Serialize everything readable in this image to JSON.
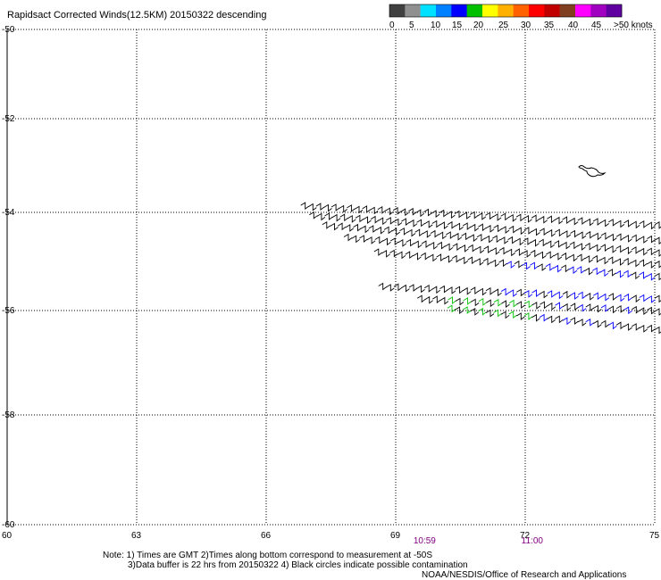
{
  "title": "Rapidsact Corrected Winds(12.5KM) 20150322 descending",
  "legend": {
    "colors": [
      "#404040",
      "#909090",
      "#00e0ff",
      "#0080ff",
      "#0000ff",
      "#00c000",
      "#ffff00",
      "#ffb000",
      "#ff6000",
      "#ff0000",
      "#c00000",
      "#804020",
      "#ff00ff",
      "#a000c0",
      "#6000a0"
    ],
    "labels": [
      "0",
      "5",
      "10",
      "15",
      "20",
      "25",
      "30",
      "35",
      "40",
      "45",
      ">50 knots"
    ]
  },
  "axes": {
    "lon_ticks": [
      60,
      63,
      66,
      69,
      72,
      75
    ],
    "lat_ticks": [
      -50,
      -52,
      -54,
      -56,
      -58,
      -60
    ],
    "lon_range": [
      60,
      75
    ],
    "lat_range": [
      -60,
      -50
    ]
  },
  "times": [
    {
      "label": "10:59",
      "lon": 69.7
    },
    {
      "label": "11:00",
      "lon": 72.2
    }
  ],
  "notes": [
    "Note: 1) Times are GMT 2)Times along bottom correspond to measurement at -50S",
    "3)Data buffer is 22 hrs from 20150322 4) Black circles indicate possible contamination",
    "NOAA/NESDIS/Office of Research and Applications"
  ],
  "chart_data": {
    "type": "scatter",
    "description_units": "lon (deg E), lat (deg)",
    "swath": {
      "rows": [
        {
          "lon_start": 66.8,
          "lat_start": -53.85,
          "lon_end": 75.0,
          "lat_end": -54.25,
          "color": "black"
        },
        {
          "lon_start": 67.0,
          "lat_start": -54.05,
          "lon_end": 75.0,
          "lat_end": -54.55,
          "color": "black"
        },
        {
          "lon_start": 67.3,
          "lat_start": -54.25,
          "lon_end": 75.0,
          "lat_end": -54.8,
          "color": "black"
        },
        {
          "lon_start": 67.8,
          "lat_start": -54.5,
          "lon_end": 75.0,
          "lat_end": -55.05,
          "color": "black"
        },
        {
          "lon_start": 68.5,
          "lat_start": -54.8,
          "lon_end": 75.0,
          "lat_end": -55.3,
          "color": "mixed-blue"
        },
        {
          "lon_start": 68.6,
          "lat_start": -55.5,
          "lon_end": 75.0,
          "lat_end": -55.75,
          "color": "mixed-blue"
        },
        {
          "lon_start": 69.5,
          "lat_start": -55.75,
          "lon_end": 75.0,
          "lat_end": -56.0,
          "color": "mixed-green"
        },
        {
          "lon_start": 70.2,
          "lat_start": -55.95,
          "lon_end": 75.0,
          "lat_end": -56.35,
          "color": "mixed-green"
        }
      ]
    },
    "island": {
      "lon": 73.5,
      "lat": -53.05
    }
  }
}
